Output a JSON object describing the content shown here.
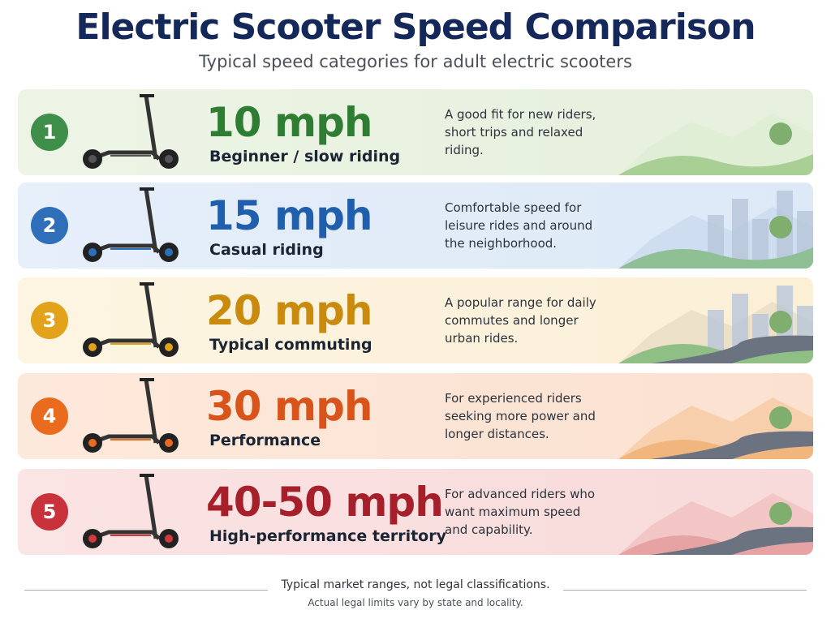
{
  "header": {
    "title": "Electric Scooter Speed Comparison",
    "subtitle": "Typical speed categories for adult electric scooters"
  },
  "tiers": [
    {
      "number": "1",
      "speed": "10 mph",
      "label": "Beginner / slow riding",
      "description": "A good fit for new riders, short trips and relaxed riding."
    },
    {
      "number": "2",
      "speed": "15 mph",
      "label": "Casual riding",
      "description": "Comfortable speed for leisure rides and around the neighborhood."
    },
    {
      "number": "3",
      "speed": "20 mph",
      "label": "Typical commuting",
      "description": "A popular range for daily commutes and longer urban rides."
    },
    {
      "number": "4",
      "speed": "30 mph",
      "label": "Performance",
      "description": "For experienced riders seeking more power and longer distances."
    },
    {
      "number": "5",
      "speed": "40-50 mph",
      "label": "High-performance territory",
      "description": "For advanced riders who want maximum speed and capability."
    }
  ],
  "footer": {
    "note": "Typical market ranges, not legal classifications.",
    "disclaimer": "Actual legal limits vary by state and locality."
  }
}
